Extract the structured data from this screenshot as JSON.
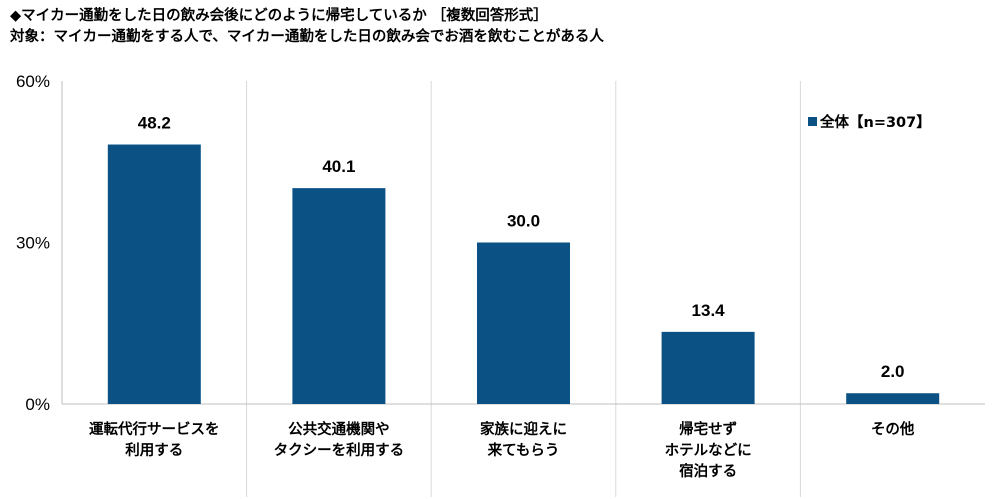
{
  "title": "◆マイカー通勤をした日の飲み会後にどのように帰宅しているか ［複数回答形式］",
  "subtitle": "対象：マイカー通勤をする人で、マイカー通勤をした日の飲み会でお酒を飲むことがある人",
  "chart_data": {
    "type": "bar",
    "categories": [
      [
        "運転代行サービスを",
        "利用する"
      ],
      [
        "公共交通機関や",
        "タクシーを利用する"
      ],
      [
        "家族に迎えに",
        "来てもらう"
      ],
      [
        "帰宅せず",
        "ホテルなどに",
        "宿泊する"
      ],
      [
        "その他"
      ]
    ],
    "series": [
      {
        "name": "全体【n=307】",
        "values": [
          48.2,
          40.1,
          30.0,
          13.4,
          2.0
        ],
        "color": "#0b5184"
      }
    ],
    "data_labels": [
      "48.2",
      "40.1",
      "30.0",
      "13.4",
      "2.0"
    ],
    "yticks": [
      "0%",
      "30%",
      "60%"
    ],
    "ylim": [
      0,
      60
    ],
    "legend_position": "top-right",
    "grid": "vertical separators between categories",
    "colors": {
      "bar": "#0b5184",
      "axis": "#bfbfbf"
    }
  }
}
